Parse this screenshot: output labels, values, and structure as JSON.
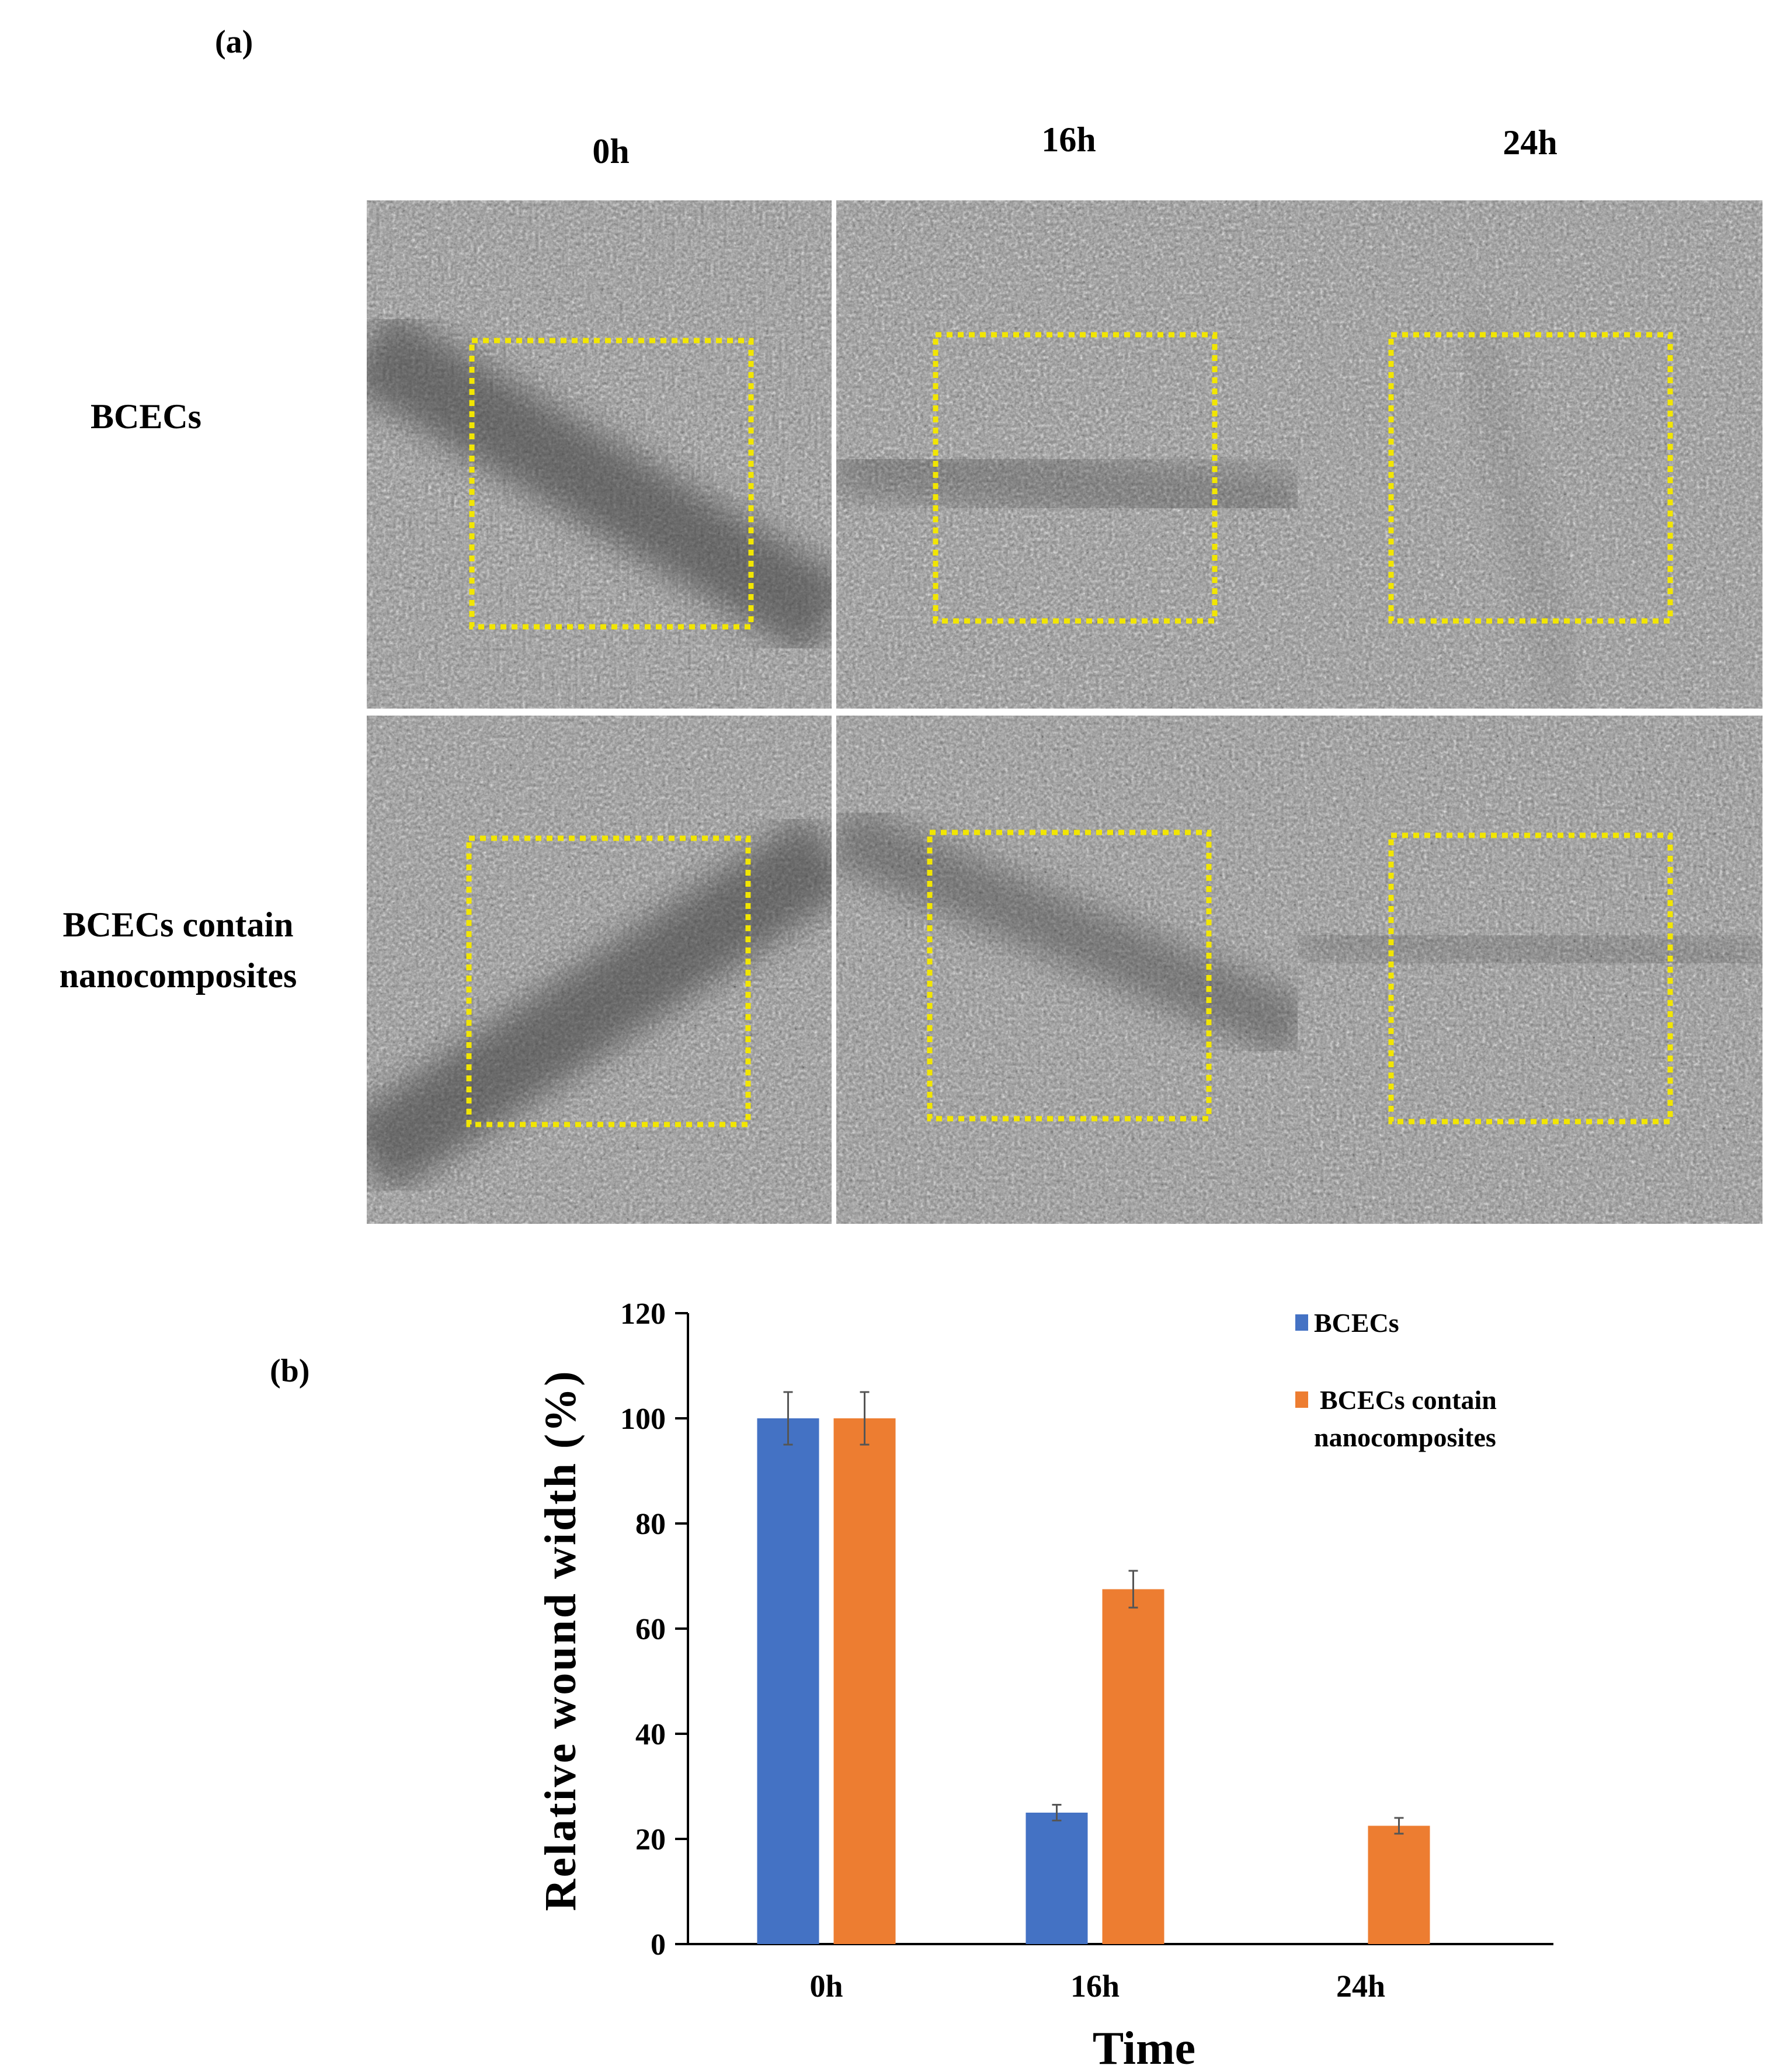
{
  "panel_a": {
    "label": "(a)",
    "columns": [
      "0h",
      "16h",
      "24h"
    ],
    "rows": [
      "BCECs",
      "BCECs contain nanocomposites"
    ],
    "images": [
      {
        "row": "BCECs",
        "time": "0h",
        "wound": "open"
      },
      {
        "row": "BCECs",
        "time": "16h",
        "wound": "narrowed"
      },
      {
        "row": "BCECs",
        "time": "24h",
        "wound": "closed"
      },
      {
        "row": "BCECs contain nanocomposites",
        "time": "0h",
        "wound": "open"
      },
      {
        "row": "BCECs contain nanocomposites",
        "time": "16h",
        "wound": "partly open"
      },
      {
        "row": "BCECs contain nanocomposites",
        "time": "24h",
        "wound": "mostly closed"
      }
    ],
    "roi_box_color": "#f2e600"
  },
  "panel_b": {
    "label": "(b)"
  },
  "chart_data": {
    "type": "bar",
    "categories": [
      "0h",
      "16h",
      "24h"
    ],
    "series": [
      {
        "name": "BCECs",
        "values": [
          100,
          25,
          null
        ],
        "errors": [
          5,
          1.5,
          null
        ],
        "color": "#4472c4"
      },
      {
        "name": "BCECs contain nanocomposites",
        "values": [
          100,
          67.5,
          22.5
        ],
        "errors": [
          5,
          3.5,
          1.5
        ],
        "color": "#ed7d31"
      }
    ],
    "xlabel": "Time",
    "ylabel": "Relative wound width (%)",
    "ylim": [
      0,
      120
    ],
    "yticks": [
      0,
      20,
      40,
      60,
      80,
      100,
      120
    ],
    "grid": false,
    "legend": "top-right"
  }
}
